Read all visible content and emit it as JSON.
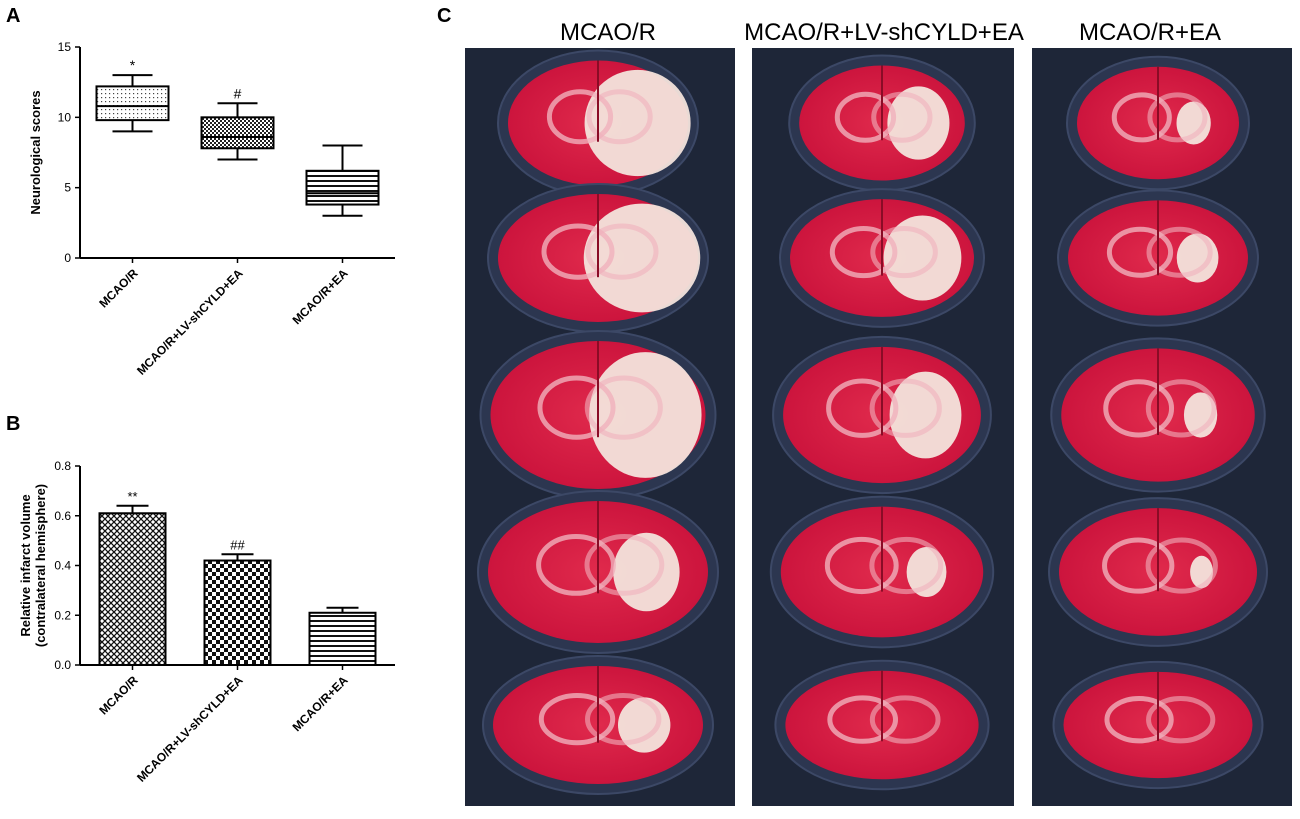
{
  "panel_letters": {
    "a": "A",
    "b": "B",
    "c": "C"
  },
  "photo_column_titles": [
    "MCAO/R",
    "MCAO/R+LV-shCYLD+EA",
    "MCAO/R+EA"
  ],
  "colors": {
    "background": "#ffffff",
    "tray": "#1e2638",
    "tray_highlight": "#2c3650",
    "stain_red": "#d8183c",
    "infarct_white": "#f3e4dc",
    "axis": "#000000"
  },
  "chart_data": [
    {
      "type": "box",
      "panel": "A",
      "title": "",
      "xlabel": "",
      "ylabel": "Neurological  scores",
      "ylim": [
        0,
        15
      ],
      "yticks": [
        0,
        5,
        10,
        15
      ],
      "categories": [
        "MCAO/R",
        "MCAO/R+LV-shCYLD+EA",
        "MCAO/R+EA"
      ],
      "boxes": [
        {
          "min": 9,
          "q1": 9.8,
          "median": 10.8,
          "q3": 12.2,
          "max": 13,
          "annotation": "*",
          "fill": "dotted"
        },
        {
          "min": 7,
          "q1": 7.8,
          "median": 8.6,
          "q3": 10,
          "max": 11,
          "annotation": "#",
          "fill": "crosshatch"
        },
        {
          "min": 3,
          "q1": 3.8,
          "median": 4.6,
          "q3": 6.2,
          "max": 8,
          "annotation": "",
          "fill": "horizontal-lines"
        }
      ]
    },
    {
      "type": "bar",
      "panel": "B",
      "title": "",
      "xlabel": "",
      "ylabel": [
        "Relative infarct volume",
        "(contralateral hemisphere)"
      ],
      "ylim": [
        0,
        0.8
      ],
      "yticks": [
        0.0,
        0.2,
        0.4,
        0.6,
        0.8
      ],
      "categories": [
        "MCAO/R",
        "MCAO/R+LV-shCYLD+EA",
        "MCAO/R+EA"
      ],
      "values": [
        0.61,
        0.42,
        0.21
      ],
      "errors": [
        0.03,
        0.025,
        0.02
      ],
      "annotations": [
        "**",
        "##",
        ""
      ],
      "fills": [
        "dense-checker",
        "checker",
        "horizontal-lines"
      ]
    }
  ]
}
